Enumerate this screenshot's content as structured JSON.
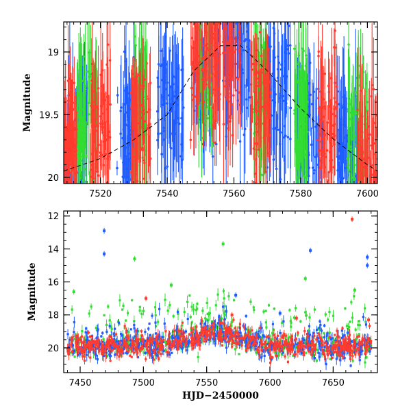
{
  "chart_data": [
    {
      "type": "scatter",
      "title": "",
      "xlabel": "",
      "ylabel": "Magnitude",
      "xlim": [
        7509,
        7603
      ],
      "ylim": [
        20.05,
        18.76
      ],
      "y_inverted": true,
      "xticks": [
        7520,
        7540,
        7560,
        7580,
        7600
      ],
      "yticks": [
        19,
        19.5,
        20
      ],
      "ytick_labels": [
        "19",
        "19.5",
        "20"
      ],
      "grid": false,
      "legend": "none",
      "model_curve": {
        "style": "dashed",
        "color": "#000000",
        "x": [
          7509,
          7520,
          7530,
          7540,
          7548,
          7556,
          7562,
          7570,
          7580,
          7590,
          7600,
          7603
        ],
        "y": [
          19.95,
          19.85,
          19.7,
          19.5,
          19.15,
          18.95,
          18.95,
          19.15,
          19.45,
          19.7,
          19.9,
          19.95
        ]
      },
      "series": [
        {
          "color": "#1e5cff",
          "x_center": [
            7512,
            7528,
            7541,
            7553,
            7561,
            7573,
            7583,
            7594
          ],
          "x_spread": [
            4,
            3,
            4,
            5,
            4,
            4,
            4,
            3
          ],
          "y_center": [
            19.8,
            19.65,
            19.45,
            19.05,
            19.0,
            19.4,
            19.6,
            19.8
          ]
        },
        {
          "color": "#33dd33",
          "x_center": [
            7516,
            7532,
            7552,
            7568,
            7580,
            7597
          ],
          "x_spread": [
            3,
            2,
            3,
            2,
            2,
            3
          ],
          "y_center": [
            19.55,
            19.45,
            19.1,
            19.4,
            19.55,
            19.65
          ]
        },
        {
          "color": "#ff3b2f",
          "x_center": [
            7511,
            7520,
            7532,
            7551,
            7558,
            7568,
            7588,
            7600
          ],
          "x_spread": [
            2,
            3,
            3,
            4,
            4,
            3,
            3,
            3
          ],
          "y_center": [
            19.85,
            19.6,
            19.6,
            19.05,
            19.0,
            19.3,
            19.55,
            19.9
          ]
        }
      ]
    },
    {
      "type": "scatter",
      "title": "",
      "xlabel": "HJD−2450000",
      "ylabel": "Magnitude",
      "xlim": [
        7437,
        7685
      ],
      "ylim": [
        21.5,
        11.7
      ],
      "y_inverted": true,
      "xticks": [
        7450,
        7500,
        7550,
        7600,
        7650
      ],
      "yticks": [
        12,
        14,
        16,
        18,
        20
      ],
      "grid": false,
      "legend": "none",
      "series": [
        {
          "color": "#1e5cff",
          "outliers": [
            [
              7469,
              12.9
            ],
            [
              7469,
              14.3
            ],
            [
              7573,
              16.8
            ],
            [
              7632,
              14.1
            ],
            [
              7677,
              14.5
            ],
            [
              7677,
              15.0
            ],
            [
              7608,
              17.9
            ]
          ]
        },
        {
          "color": "#33dd33",
          "outliers": [
            [
              7493,
              14.6
            ],
            [
              7563,
              13.7
            ],
            [
              7628,
              15.8
            ],
            [
              7667,
              16.5
            ],
            [
              7445,
              16.6
            ],
            [
              7522,
              16.2
            ]
          ]
        },
        {
          "color": "#ff3b2f",
          "outliers": [
            [
              7665,
              12.2
            ],
            [
              7502,
              17.0
            ],
            [
              7570,
              18.0
            ],
            [
              7621,
              18.2
            ],
            [
              7678,
              18.3
            ]
          ]
        }
      ],
      "baseline": {
        "x": [
          7440,
          7470,
          7500,
          7530,
          7545,
          7555,
          7565,
          7575,
          7600,
          7630,
          7660,
          7680
        ],
        "y": [
          19.9,
          19.9,
          19.85,
          19.6,
          19.2,
          19.0,
          19.05,
          19.4,
          19.85,
          19.9,
          19.95,
          19.9
        ]
      }
    }
  ]
}
